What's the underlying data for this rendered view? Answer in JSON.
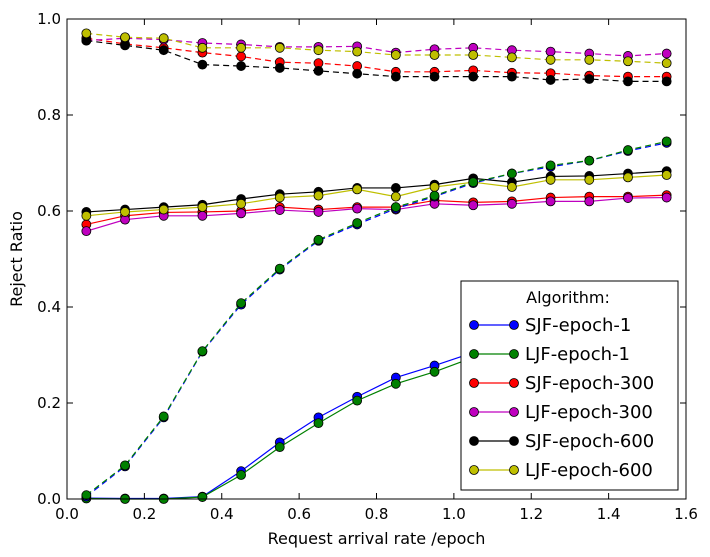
{
  "chart_data": {
    "type": "line",
    "xlabel": "Request arrival rate /epoch",
    "ylabel": "Reject Ratio",
    "xlim": [
      0,
      1.6
    ],
    "ylim": [
      0,
      1.0
    ],
    "xticks": [
      "0.0",
      "0.2",
      "0.4",
      "0.6",
      "0.8",
      "1.0",
      "1.2",
      "1.4",
      "1.6"
    ],
    "yticks": [
      "0.0",
      "0.2",
      "0.4",
      "0.6",
      "0.8",
      "1.0"
    ],
    "grid": false,
    "legend": {
      "title": "Algorithm:",
      "placement": "lower-right",
      "entries": [
        "SJF-epoch-1",
        "LJF-epoch-1",
        "SJF-epoch-300",
        "LJF-epoch-300",
        "SJF-epoch-600",
        "LJF-epoch-600"
      ]
    },
    "x": [
      0.05,
      0.15,
      0.25,
      0.35,
      0.45,
      0.55,
      0.65,
      0.75,
      0.85,
      0.95,
      1.05,
      1.15,
      1.25,
      1.35,
      1.45,
      1.55
    ],
    "series": [
      {
        "name": "SJF-epoch-1",
        "style": "solid",
        "color": "#0000ff",
        "values": [
          0.002,
          0.001,
          0.001,
          0.005,
          0.058,
          0.118,
          0.17,
          0.213,
          0.253,
          0.278,
          0.305,
          0.34,
          0.375,
          0.395,
          0.42,
          0.44
        ]
      },
      {
        "name": "LJF-epoch-1",
        "style": "solid",
        "color": "#008000",
        "values": [
          0.001,
          0.0,
          0.0,
          0.004,
          0.05,
          0.108,
          0.158,
          0.205,
          0.24,
          0.265,
          0.295,
          0.33,
          0.365,
          0.385,
          0.41,
          0.43
        ]
      },
      {
        "name": "SJF-epoch-300",
        "style": "solid",
        "color": "#ff0000",
        "values": [
          0.572,
          0.59,
          0.597,
          0.598,
          0.6,
          0.608,
          0.603,
          0.608,
          0.608,
          0.622,
          0.618,
          0.62,
          0.628,
          0.63,
          0.63,
          0.633
        ]
      },
      {
        "name": "LJF-epoch-300",
        "style": "solid",
        "color": "#bf00bf",
        "values": [
          0.558,
          0.582,
          0.59,
          0.59,
          0.595,
          0.602,
          0.598,
          0.605,
          0.603,
          0.615,
          0.612,
          0.615,
          0.62,
          0.62,
          0.627,
          0.628
        ]
      },
      {
        "name": "SJF-epoch-600",
        "style": "solid",
        "color": "#000000",
        "values": [
          0.598,
          0.603,
          0.608,
          0.613,
          0.625,
          0.635,
          0.64,
          0.648,
          0.648,
          0.655,
          0.668,
          0.66,
          0.672,
          0.673,
          0.678,
          0.683
        ]
      },
      {
        "name": "LJF-epoch-600",
        "style": "solid",
        "color": "#bfbf00",
        "values": [
          0.59,
          0.598,
          0.603,
          0.608,
          0.615,
          0.628,
          0.632,
          0.645,
          0.63,
          0.65,
          0.66,
          0.65,
          0.665,
          0.665,
          0.67,
          0.675
        ]
      },
      {
        "name": "",
        "style": "dashed",
        "color": "#0000ff",
        "values": [
          0.005,
          0.068,
          0.17,
          0.307,
          0.405,
          0.478,
          0.538,
          0.572,
          0.605,
          0.63,
          0.658,
          0.678,
          0.692,
          0.705,
          0.725,
          0.742
        ]
      },
      {
        "name": "",
        "style": "dashed",
        "color": "#008000",
        "values": [
          0.008,
          0.07,
          0.172,
          0.308,
          0.408,
          0.48,
          0.54,
          0.575,
          0.608,
          0.632,
          0.66,
          0.678,
          0.695,
          0.705,
          0.727,
          0.745
        ]
      },
      {
        "name": "",
        "style": "dashed",
        "color": "#ff0000",
        "values": [
          0.96,
          0.948,
          0.94,
          0.93,
          0.922,
          0.91,
          0.908,
          0.902,
          0.89,
          0.89,
          0.893,
          0.888,
          0.887,
          0.882,
          0.88,
          0.88
        ]
      },
      {
        "name": "",
        "style": "dashed",
        "color": "#bf00bf",
        "values": [
          0.955,
          0.96,
          0.957,
          0.95,
          0.947,
          0.942,
          0.942,
          0.943,
          0.93,
          0.937,
          0.94,
          0.935,
          0.932,
          0.928,
          0.923,
          0.928
        ]
      },
      {
        "name": "",
        "style": "dashed",
        "color": "#000000",
        "values": [
          0.955,
          0.945,
          0.935,
          0.905,
          0.902,
          0.898,
          0.892,
          0.886,
          0.88,
          0.88,
          0.88,
          0.88,
          0.873,
          0.875,
          0.87,
          0.87
        ]
      },
      {
        "name": "",
        "style": "dashed",
        "color": "#bfbf00",
        "values": [
          0.97,
          0.962,
          0.96,
          0.94,
          0.94,
          0.94,
          0.935,
          0.932,
          0.925,
          0.925,
          0.925,
          0.92,
          0.915,
          0.915,
          0.912,
          0.908
        ]
      }
    ]
  }
}
